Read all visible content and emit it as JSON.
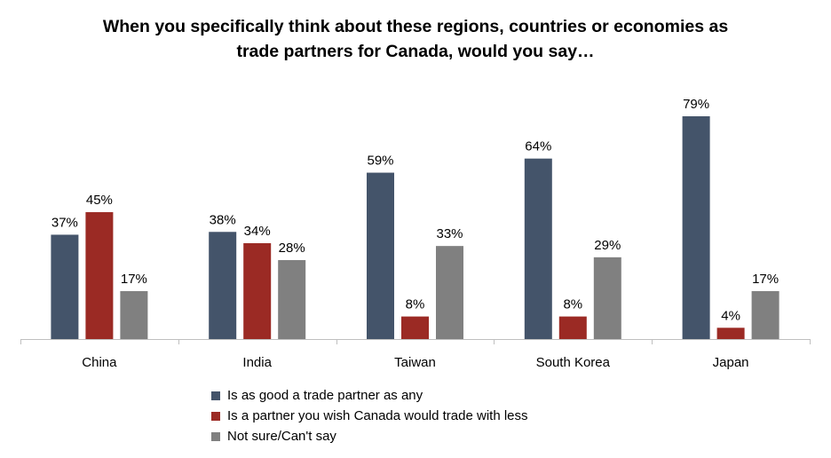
{
  "chart_data": {
    "type": "bar",
    "title_lines": [
      "When you specifically think about these regions, countries or economies as",
      "trade partners for Canada, would you say…"
    ],
    "categories": [
      "China",
      "India",
      "Taiwan",
      "South Korea",
      "Japan"
    ],
    "series": [
      {
        "name": "Is as good a trade partner as any",
        "color": "#44546a",
        "values": [
          37,
          38,
          59,
          64,
          79
        ]
      },
      {
        "name": "Is a partner you wish Canada would trade with less",
        "color": "#9b2a24",
        "values": [
          45,
          34,
          8,
          8,
          4
        ]
      },
      {
        "name": "Not sure/Can't say",
        "color": "#808080",
        "values": [
          17,
          28,
          33,
          29,
          17
        ]
      }
    ],
    "value_suffix": "%",
    "ylim": [
      0,
      80
    ],
    "grid": false,
    "legend_position": "bottom"
  }
}
